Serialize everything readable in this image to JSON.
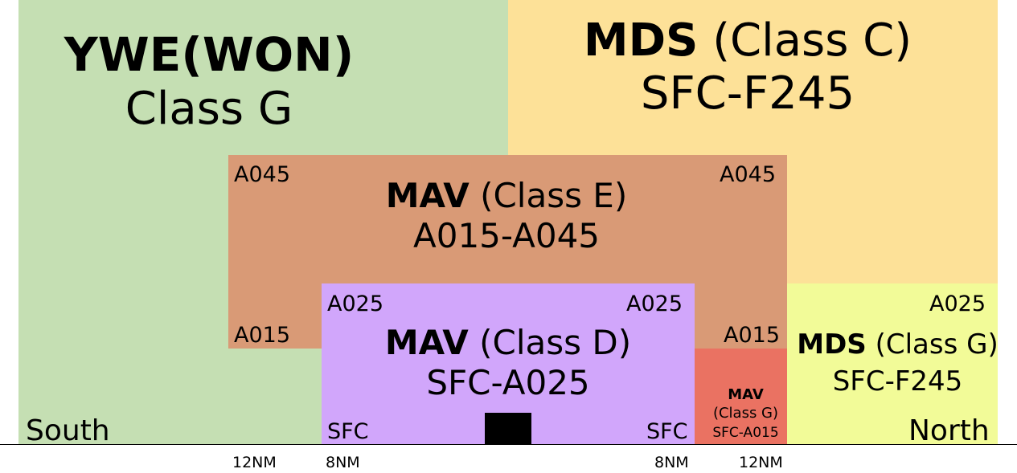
{
  "zones": {
    "ywe": {
      "name": "YWE(WON)",
      "class": "Class G",
      "color": "#c5dfb3"
    },
    "mds_c": {
      "name": "MDS",
      "class": "(Class C)",
      "range": "SFC-F245",
      "color": "#fde198"
    },
    "mav_e": {
      "name": "MAV",
      "class": "(Class E)",
      "range": "A015-A045",
      "upper_left": "A045",
      "upper_right": "A045",
      "lower_left": "A015",
      "lower_right": "A015",
      "color": "#d99a76"
    },
    "mav_d": {
      "name": "MAV",
      "class": "(Class D)",
      "range": "SFC-A025",
      "upper_left": "A025",
      "upper_right": "A025",
      "lower_left": "SFC",
      "lower_right": "SFC",
      "color": "#d1a6fb"
    },
    "mav_g": {
      "name": "MAV",
      "class": "(Class G)",
      "range": "SFC-A015",
      "color": "#ea7262"
    },
    "mds_g": {
      "name": "MDS",
      "class": "(Class G)",
      "range": "SFC-F245",
      "upper": "A025",
      "color": "#f2fb98"
    }
  },
  "directions": {
    "south": "South",
    "north": "North"
  },
  "distances": [
    "12NM",
    "8NM",
    "8NM",
    "12NM"
  ]
}
